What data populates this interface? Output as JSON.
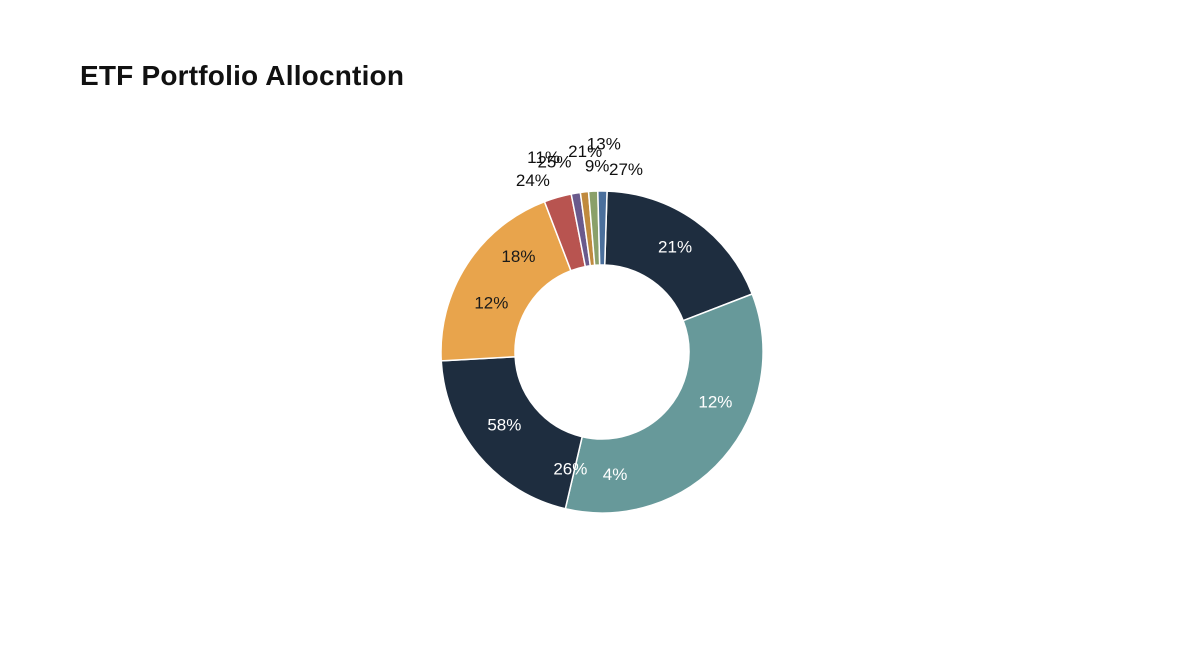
{
  "chart_data": {
    "type": "pie",
    "title": "ETF Portfolio Allocntion",
    "donut": true,
    "legend": "none",
    "slices": [
      {
        "value": 18.3,
        "color": "#1e2d3f",
        "labels": [
          "21%"
        ]
      },
      {
        "value": 33.9,
        "color": "#67999a",
        "labels": [
          "12%",
          "4%"
        ]
      },
      {
        "value": 20.1,
        "color": "#1e2d3f",
        "labels": [
          "58%",
          "26%"
        ]
      },
      {
        "value": 19.7,
        "color": "#e8a44c",
        "labels": [
          "18%",
          "12%"
        ]
      },
      {
        "value": 2.7,
        "color": "#b85450",
        "labels": [
          "24%"
        ]
      },
      {
        "value": 0.9,
        "color": "#6a5a8c",
        "labels": [
          "25%"
        ]
      },
      {
        "value": 0.8,
        "color": "#c08a3e",
        "labels": [
          "11%"
        ]
      },
      {
        "value": 0.9,
        "color": "#8aa06a",
        "labels": [
          "21%"
        ]
      },
      {
        "value": 0.9,
        "color": "#4a6f9c",
        "labels": [
          "9%",
          "13%",
          "27%"
        ]
      }
    ]
  }
}
